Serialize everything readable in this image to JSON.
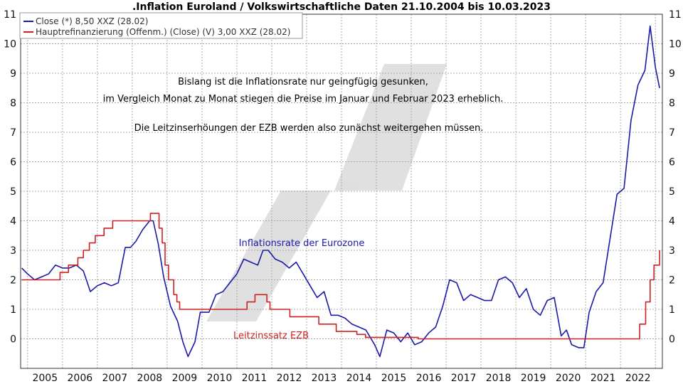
{
  "chart_data": {
    "type": "line",
    "title": ".Inflation Euroland / Volkswirtschaftliche Daten 21.10.2004 bis 10.03.2023",
    "xlabel": "",
    "ylabel": "",
    "xlim": [
      2004.8,
      2023.2
    ],
    "ylim": [
      -1,
      11
    ],
    "y_ticks": [
      0,
      1,
      2,
      3,
      4,
      5,
      6,
      7,
      8,
      9,
      10,
      11
    ],
    "x_ticks": [
      "2005",
      "2006",
      "2007",
      "2008",
      "2009",
      "2010",
      "2011",
      "2012",
      "2013",
      "2014",
      "2015",
      "2016",
      "2017",
      "2018",
      "2019",
      "2020",
      "2021",
      "2022"
    ],
    "grid": true,
    "legend_position": "top-left",
    "annotations": [
      "Bislang ist die Inflationsrate nur geingfügig gesunken,",
      "im Vergleich Monat zu Monat stiegen die Preise im Januar und Februar 2023 erheblich.",
      "Die Leitzinserhöungen der EZB werden also zunächst weitergehen müssen."
    ],
    "series": [
      {
        "name": "Close (*) 8,50 XXZ (28.02)",
        "label": "Inflationsrate der Eurozone",
        "color": "#1a1aa6",
        "x": [
          2004.83,
          2005.0,
          2005.2,
          2005.4,
          2005.6,
          2005.8,
          2006.0,
          2006.2,
          2006.4,
          2006.6,
          2006.8,
          2007.0,
          2007.2,
          2007.4,
          2007.6,
          2007.8,
          2007.95,
          2008.1,
          2008.3,
          2008.5,
          2008.6,
          2008.75,
          2008.9,
          2009.1,
          2009.3,
          2009.45,
          2009.6,
          2009.8,
          2009.95,
          2010.2,
          2010.4,
          2010.6,
          2010.8,
          2011.0,
          2011.2,
          2011.4,
          2011.6,
          2011.75,
          2011.9,
          2012.1,
          2012.3,
          2012.5,
          2012.7,
          2012.9,
          2013.1,
          2013.3,
          2013.5,
          2013.7,
          2013.9,
          2014.1,
          2014.3,
          2014.5,
          2014.7,
          2014.95,
          2015.1,
          2015.3,
          2015.5,
          2015.7,
          2015.9,
          2016.1,
          2016.3,
          2016.5,
          2016.7,
          2016.9,
          2017.1,
          2017.3,
          2017.5,
          2017.7,
          2017.9,
          2018.1,
          2018.3,
          2018.5,
          2018.7,
          2018.9,
          2019.1,
          2019.3,
          2019.5,
          2019.7,
          2019.9,
          2020.1,
          2020.3,
          2020.45,
          2020.6,
          2020.8,
          2020.95,
          2021.1,
          2021.3,
          2021.5,
          2021.7,
          2021.9,
          2022.1,
          2022.3,
          2022.5,
          2022.7,
          2022.85,
          2023.0,
          2023.12
        ],
        "values": [
          2.4,
          2.2,
          2.0,
          2.1,
          2.2,
          2.5,
          2.4,
          2.4,
          2.5,
          2.3,
          1.6,
          1.8,
          1.9,
          1.8,
          1.9,
          3.1,
          3.1,
          3.3,
          3.7,
          4.0,
          4.0,
          3.2,
          2.1,
          1.1,
          0.6,
          -0.1,
          -0.6,
          -0.1,
          0.9,
          0.9,
          1.5,
          1.6,
          1.9,
          2.2,
          2.7,
          2.6,
          2.5,
          3.0,
          3.0,
          2.7,
          2.6,
          2.4,
          2.6,
          2.2,
          1.8,
          1.4,
          1.6,
          0.8,
          0.8,
          0.7,
          0.5,
          0.4,
          0.3,
          -0.2,
          -0.6,
          0.3,
          0.2,
          -0.1,
          0.2,
          -0.2,
          -0.1,
          0.2,
          0.4,
          1.1,
          2.0,
          1.9,
          1.3,
          1.5,
          1.4,
          1.3,
          1.3,
          2.0,
          2.1,
          1.9,
          1.4,
          1.7,
          1.0,
          0.8,
          1.3,
          1.4,
          0.1,
          0.3,
          -0.2,
          -0.3,
          -0.3,
          0.9,
          1.6,
          1.9,
          3.4,
          4.9,
          5.1,
          7.4,
          8.6,
          9.1,
          10.6,
          9.2,
          8.5
        ]
      },
      {
        "name": "Hauptrefinanzierung (Offenm.) (Close) (V) 3,00 XXZ (28.02)",
        "label": "Leitzinssatz EZB",
        "color": "#cc2222",
        "x": [
          2004.83,
          2005.93,
          2006.17,
          2006.44,
          2006.6,
          2006.77,
          2006.94,
          2007.19,
          2007.44,
          2008.52,
          2008.77,
          2008.86,
          2008.94,
          2009.04,
          2009.19,
          2009.28,
          2009.36,
          2011.29,
          2011.52,
          2011.86,
          2011.95,
          2012.52,
          2013.35,
          2013.85,
          2014.44,
          2014.69,
          2015.2,
          2016.2,
          2022.55,
          2022.72,
          2022.85,
          2022.96,
          2023.12
        ],
        "values": [
          2.0,
          2.25,
          2.5,
          2.75,
          3.0,
          3.25,
          3.5,
          3.75,
          4.0,
          4.25,
          3.75,
          3.25,
          2.5,
          2.0,
          1.5,
          1.25,
          1.0,
          1.25,
          1.5,
          1.25,
          1.0,
          0.75,
          0.5,
          0.25,
          0.15,
          0.05,
          0.05,
          0.0,
          0.5,
          1.25,
          2.0,
          2.5,
          3.0
        ]
      }
    ]
  }
}
